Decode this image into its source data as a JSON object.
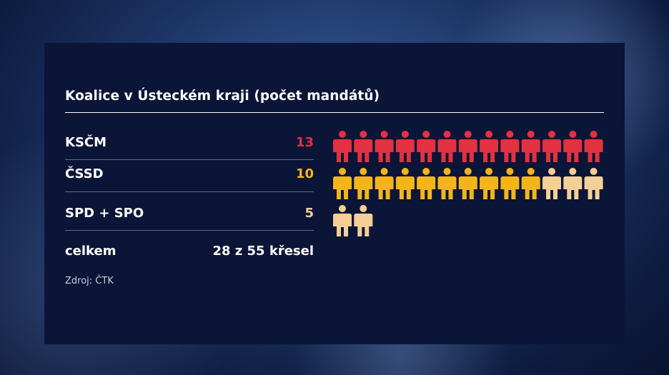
{
  "title": "Koalice v Ústeckém kraji (počet mandátů)",
  "rows": [
    {
      "label": "KSČM",
      "value": "13",
      "color": "#e23140"
    },
    {
      "label": "ČSSD",
      "value": "10",
      "color": "#f4b51b"
    },
    {
      "label": "SPD + SPO",
      "value": "5",
      "color": "#f5cf96"
    }
  ],
  "total": {
    "label": "celkem",
    "value": "28 z 55 křesel"
  },
  "source": "Zdroj: ČTK",
  "chart_data": {
    "type": "pictogram",
    "unit": "person-icon",
    "series": [
      {
        "name": "KSČM",
        "values": [
          13
        ],
        "color": "#e23140"
      },
      {
        "name": "ČSSD",
        "values": [
          10
        ],
        "color": "#f4b51b"
      },
      {
        "name": "SPD + SPO",
        "values": [
          5
        ],
        "color": "#f5cf96"
      }
    ],
    "icons_per_row": 13,
    "total_seats": 28,
    "of_seats": 55
  }
}
